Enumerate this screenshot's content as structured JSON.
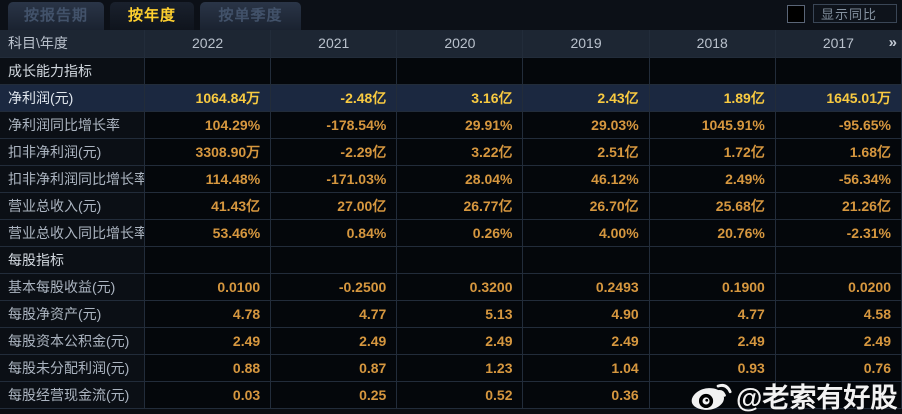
{
  "tabs": [
    {
      "label": "按报告期",
      "active": false
    },
    {
      "label": "按年度",
      "active": true
    },
    {
      "label": "按单季度",
      "active": false
    }
  ],
  "controls": {
    "show_yoy_label": "显示同比",
    "checkbox_checked": false
  },
  "table": {
    "corner_label": "科目\\年度",
    "years": [
      "2022",
      "2021",
      "2020",
      "2019",
      "2018",
      "2017"
    ],
    "more_glyph": "»",
    "rows": [
      {
        "type": "section",
        "label": "成长能力指标",
        "values": [
          "",
          "",
          "",
          "",
          "",
          ""
        ]
      },
      {
        "type": "highlight",
        "label": "净利润(元)",
        "values": [
          "1064.84万",
          "-2.48亿",
          "3.16亿",
          "2.43亿",
          "1.89亿",
          "1645.01万"
        ]
      },
      {
        "type": "data",
        "label": "净利润同比增长率",
        "values": [
          "104.29%",
          "-178.54%",
          "29.91%",
          "29.03%",
          "1045.91%",
          "-95.65%"
        ]
      },
      {
        "type": "data",
        "label": "扣非净利润(元)",
        "values": [
          "3308.90万",
          "-2.29亿",
          "3.22亿",
          "2.51亿",
          "1.72亿",
          "1.68亿"
        ]
      },
      {
        "type": "data",
        "label": "扣非净利润同比增长率",
        "values": [
          "114.48%",
          "-171.03%",
          "28.04%",
          "46.12%",
          "2.49%",
          "-56.34%"
        ]
      },
      {
        "type": "data",
        "label": "营业总收入(元)",
        "values": [
          "41.43亿",
          "27.00亿",
          "26.77亿",
          "26.70亿",
          "25.68亿",
          "21.26亿"
        ]
      },
      {
        "type": "data",
        "label": "营业总收入同比增长率",
        "values": [
          "53.46%",
          "0.84%",
          "0.26%",
          "4.00%",
          "20.76%",
          "-2.31%"
        ]
      },
      {
        "type": "section",
        "label": "每股指标",
        "values": [
          "",
          "",
          "",
          "",
          "",
          ""
        ]
      },
      {
        "type": "data",
        "label": "基本每股收益(元)",
        "values": [
          "0.0100",
          "-0.2500",
          "0.3200",
          "0.2493",
          "0.1900",
          "0.0200"
        ]
      },
      {
        "type": "data",
        "label": "每股净资产(元)",
        "values": [
          "4.78",
          "4.77",
          "5.13",
          "4.90",
          "4.77",
          "4.58"
        ]
      },
      {
        "type": "data",
        "label": "每股资本公积金(元)",
        "values": [
          "2.49",
          "2.49",
          "2.49",
          "2.49",
          "2.49",
          "2.49"
        ]
      },
      {
        "type": "data",
        "label": "每股未分配利润(元)",
        "values": [
          "0.88",
          "0.87",
          "1.23",
          "1.04",
          "0.93",
          "0.76"
        ]
      },
      {
        "type": "data",
        "label": "每股经营现金流(元)",
        "values": [
          "0.03",
          "0.25",
          "0.52",
          "0.36",
          "",
          ""
        ]
      }
    ]
  },
  "watermark": {
    "text": "@老索有好股",
    "icon": "weibo-icon"
  },
  "colors": {
    "accent_value": "#d6973f",
    "highlight_value": "#f8ca41",
    "active_tab_text": "#ffd02f",
    "header_bg": "#1d2633",
    "highlight_row_bg": "#1b2840"
  }
}
